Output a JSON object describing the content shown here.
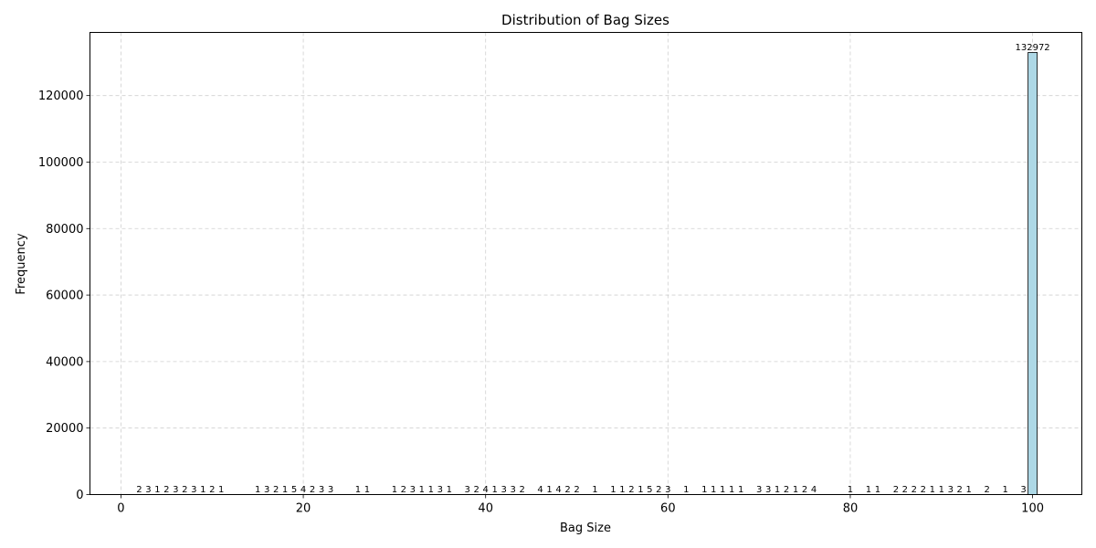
{
  "chart_data": {
    "type": "bar",
    "title": "Distribution of Bag Sizes",
    "xlabel": "Bag Size",
    "ylabel": "Frequency",
    "xlim": [
      -3.4,
      105.4
    ],
    "ylim": [
      0,
      139000
    ],
    "xticks": [
      0,
      20,
      40,
      60,
      80,
      100
    ],
    "yticks": [
      0,
      20000,
      40000,
      60000,
      80000,
      100000,
      120000
    ],
    "grid": true,
    "bar_color": "#add8e6",
    "edge_color": "#000000",
    "bar_width": 1,
    "x": [
      2,
      3,
      4,
      5,
      6,
      7,
      8,
      9,
      10,
      11,
      15,
      16,
      17,
      18,
      19,
      20,
      21,
      22,
      23,
      26,
      27,
      30,
      31,
      32,
      33,
      34,
      35,
      36,
      38,
      39,
      40,
      41,
      42,
      43,
      44,
      46,
      47,
      48,
      49,
      50,
      52,
      54,
      55,
      56,
      57,
      58,
      59,
      60,
      62,
      64,
      65,
      66,
      67,
      68,
      70,
      71,
      72,
      73,
      74,
      75,
      76,
      80,
      82,
      83,
      85,
      86,
      87,
      88,
      89,
      90,
      91,
      92,
      93,
      95,
      97,
      99,
      100
    ],
    "values": [
      2,
      3,
      1,
      2,
      3,
      2,
      3,
      1,
      2,
      1,
      1,
      3,
      2,
      1,
      5,
      4,
      2,
      3,
      3,
      1,
      1,
      1,
      2,
      3,
      1,
      1,
      3,
      1,
      3,
      2,
      4,
      1,
      3,
      3,
      2,
      4,
      1,
      4,
      2,
      2,
      1,
      1,
      1,
      2,
      1,
      5,
      2,
      3,
      1,
      1,
      1,
      1,
      1,
      1,
      3,
      3,
      1,
      2,
      1,
      2,
      4,
      1,
      1,
      1,
      2,
      2,
      2,
      2,
      1,
      1,
      3,
      2,
      1,
      2,
      1,
      3,
      132972
    ]
  }
}
